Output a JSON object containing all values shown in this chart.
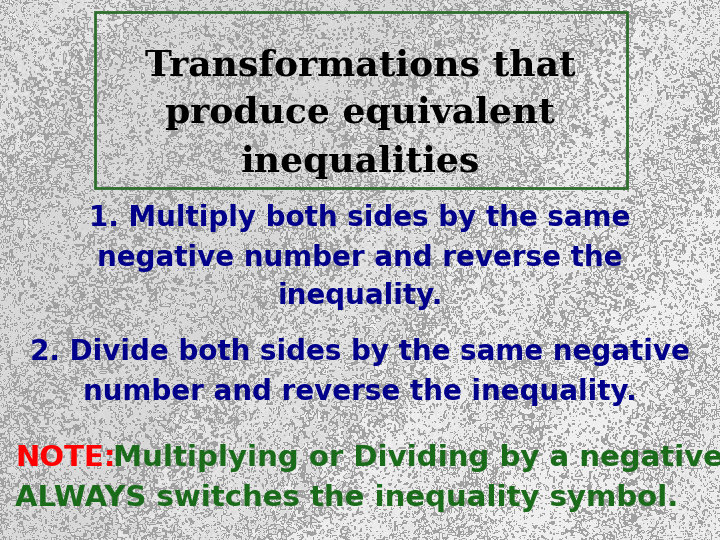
{
  "title_line1": "Transformations that",
  "title_line2": "produce equivalent",
  "title_line3": "inequalities",
  "title_color": "#000000",
  "title_box_edgecolor": "#2d6e2d",
  "point1_line1": "1. Multiply both sides by the same",
  "point1_line2": "negative number and reverse the",
  "point1_line3": "inequality.",
  "point1_color": "#00008B",
  "point2_line1": "2. Divide both sides by the same negative",
  "point2_line2": "number and reverse the inequality.",
  "point2_color": "#00008B",
  "note_prefix": "NOTE:",
  "note_prefix_color": "#ff0000",
  "note_line1_rest": " Multiplying or Dividing by a negative",
  "note_line2": "ALWAYS switches the inequality symbol.",
  "note_rest_color": "#1a6b1a",
  "fig_width": 7.2,
  "fig_height": 5.4,
  "dpi": 100
}
